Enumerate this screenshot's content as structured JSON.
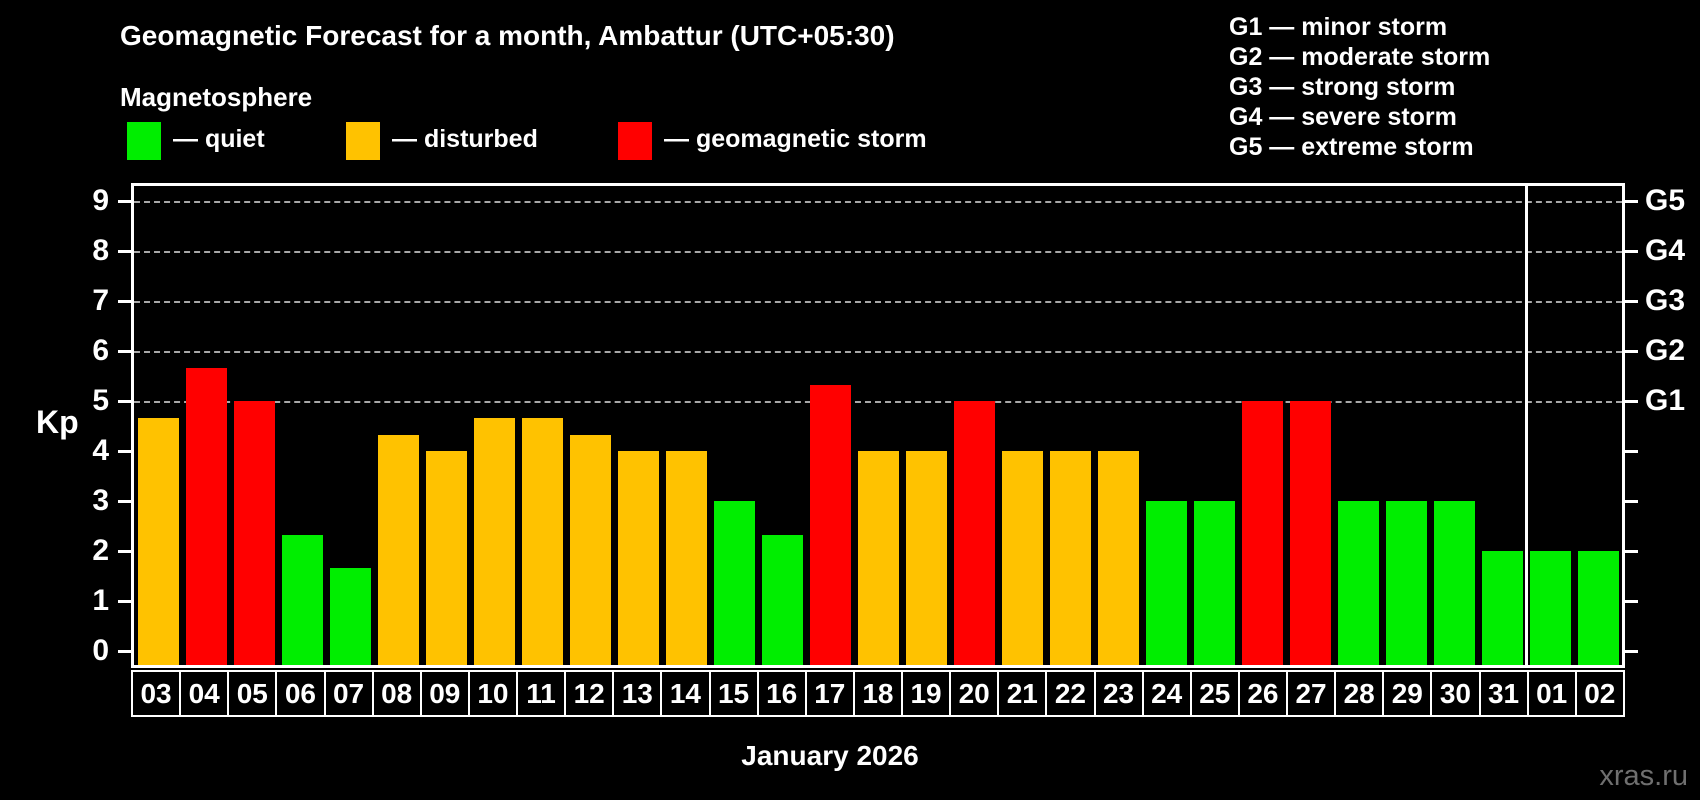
{
  "header": {
    "title": "Geomagnetic Forecast for a month, Ambattur (UTC+05:30)",
    "subtitle": "Magnetosphere"
  },
  "legend": {
    "items": [
      {
        "key": "quiet",
        "label": "— quiet",
        "color": "#00ee00",
        "x": 0
      },
      {
        "key": "disturbed",
        "label": "— disturbed",
        "color": "#ffc200",
        "x": 219
      },
      {
        "key": "storm",
        "label": "— geomagnetic storm",
        "color": "#ff0000",
        "x": 491
      }
    ]
  },
  "g_legend": {
    "items": [
      "G1 — minor storm",
      "G2 — moderate storm",
      "G3 — strong storm",
      "G4 — severe storm",
      "G5 — extreme storm"
    ]
  },
  "axes": {
    "y_label": "Kp",
    "y_ticks": [
      0,
      1,
      2,
      3,
      4,
      5,
      6,
      7,
      8,
      9
    ],
    "right_labels": [
      {
        "label": "G1",
        "kp": 5
      },
      {
        "label": "G2",
        "kp": 6
      },
      {
        "label": "G3",
        "kp": 7
      },
      {
        "label": "G4",
        "kp": 8
      },
      {
        "label": "G5",
        "kp": 9
      }
    ],
    "x_title": "January 2026"
  },
  "watermark": "xras.ru",
  "chart_data": {
    "type": "bar",
    "title": "Geomagnetic Forecast for a month, Ambattur (UTC+05:30)",
    "ylabel": "Kp",
    "xlabel": "January 2026",
    "ylim": [
      0,
      9.4
    ],
    "gridlines_at": [
      5,
      6,
      7,
      8,
      9
    ],
    "legend_position": "top",
    "categories": [
      "03",
      "04",
      "05",
      "06",
      "07",
      "08",
      "09",
      "10",
      "11",
      "12",
      "13",
      "14",
      "15",
      "16",
      "17",
      "18",
      "19",
      "20",
      "21",
      "22",
      "23",
      "24",
      "25",
      "26",
      "27",
      "28",
      "29",
      "30",
      "31",
      "01",
      "02"
    ],
    "values": [
      4.67,
      5.67,
      5.0,
      2.33,
      1.67,
      4.33,
      4.0,
      4.67,
      4.67,
      4.33,
      4.0,
      4.0,
      3.0,
      2.33,
      5.33,
      4.0,
      4.0,
      5.0,
      4.0,
      4.0,
      4.0,
      3.0,
      3.0,
      5.0,
      5.0,
      3.0,
      3.0,
      3.0,
      2.0,
      2.0,
      2.0
    ],
    "month_separator_after_index": 28,
    "color_rules": {
      "storm_min": 5,
      "disturbed_min": 3.67
    },
    "colors": {
      "quiet": "#00ee00",
      "disturbed": "#ffc200",
      "storm": "#ff0000"
    }
  }
}
